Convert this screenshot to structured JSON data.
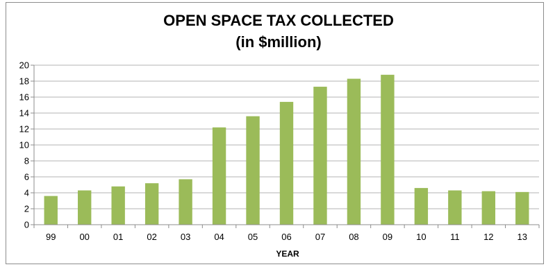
{
  "chart_data": {
    "type": "bar",
    "title": "OPEN SPACE TAX COLLECTED",
    "subtitle": "(in $million)",
    "xlabel": "YEAR",
    "ylabel": "",
    "categories": [
      "99",
      "00",
      "01",
      "02",
      "03",
      "04",
      "05",
      "06",
      "07",
      "08",
      "09",
      "10",
      "11",
      "12",
      "13"
    ],
    "values": [
      3.6,
      4.3,
      4.8,
      5.2,
      5.7,
      12.2,
      13.6,
      15.4,
      17.3,
      18.3,
      18.8,
      4.6,
      4.3,
      4.2,
      4.1
    ],
    "ylim": [
      0,
      20
    ],
    "yticks": [
      0,
      2,
      4,
      6,
      8,
      10,
      12,
      14,
      16,
      18,
      20
    ],
    "grid": true,
    "legend": "none",
    "colors": {
      "bar": "#9bbb59",
      "gridline": "#b3b3b3",
      "axis": "#8c8c8c"
    }
  }
}
